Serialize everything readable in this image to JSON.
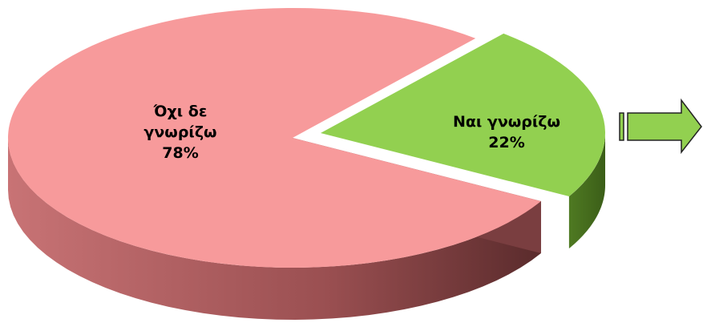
{
  "chart_data": {
    "type": "pie",
    "categories": [
      "Όχι δε γνωρίζω",
      "Ναι γνωρίζω"
    ],
    "values": [
      78,
      22
    ],
    "value_labels": [
      "78%",
      "22%"
    ],
    "colors": [
      "#f79a9b",
      "#92d050"
    ]
  }
}
